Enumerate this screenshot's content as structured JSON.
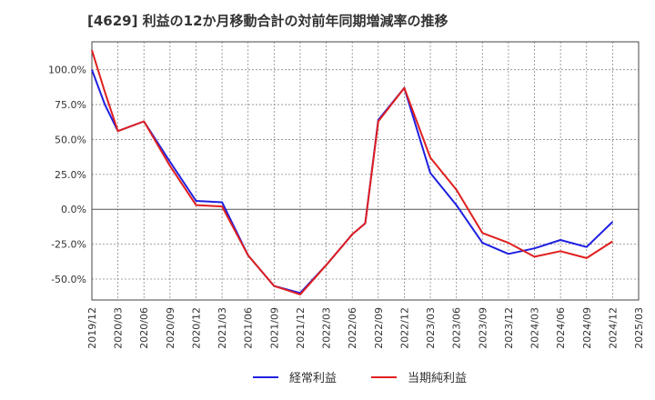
{
  "chart_data": {
    "type": "line",
    "title": "[4629]  利益の12か月移動合計の対前年同期増減率の推移",
    "xlabel": "",
    "ylabel": "",
    "ylim": [
      -65,
      120
    ],
    "yticks": [
      100,
      75,
      50,
      25,
      0,
      -25,
      -50
    ],
    "ytick_labels": [
      "100.0%",
      "75.0%",
      "50.0%",
      "25.0%",
      "0.0%",
      "-25.0%",
      "-50.0%"
    ],
    "x_tick_labels": [
      "2019/12",
      "2020/03",
      "2020/06",
      "2020/09",
      "2020/12",
      "2021/03",
      "2021/06",
      "2021/09",
      "2021/12",
      "2022/03",
      "2022/06",
      "2022/09",
      "2022/12",
      "2023/03",
      "2023/06",
      "2023/09",
      "2023/12",
      "2024/03",
      "2024/06",
      "2024/09",
      "2024/12",
      "2025/03"
    ],
    "grid": true,
    "legend_position": "bottom-center",
    "series": [
      {
        "name": "経常利益",
        "color": "#1f1fe0",
        "points": [
          [
            0,
            100
          ],
          [
            0.5,
            75
          ],
          [
            1,
            56
          ],
          [
            2,
            63
          ],
          [
            3,
            34
          ],
          [
            4,
            6
          ],
          [
            5,
            5
          ],
          [
            6,
            -33
          ],
          [
            7,
            -55
          ],
          [
            8,
            -60
          ],
          [
            9,
            -40
          ],
          [
            10,
            -18
          ],
          [
            10.5,
            -10
          ],
          [
            11,
            64
          ],
          [
            12,
            87
          ],
          [
            13,
            26
          ],
          [
            14,
            3
          ],
          [
            15,
            -24
          ],
          [
            16,
            -32
          ],
          [
            17,
            -28
          ],
          [
            18,
            -22
          ],
          [
            19,
            -27
          ],
          [
            20,
            -9
          ]
        ]
      },
      {
        "name": "当期純利益",
        "color": "#e01f1f",
        "points": [
          [
            0,
            114
          ],
          [
            0.5,
            84
          ],
          [
            1,
            56
          ],
          [
            2,
            63
          ],
          [
            3,
            31
          ],
          [
            4,
            3
          ],
          [
            5,
            2
          ],
          [
            6,
            -33
          ],
          [
            7,
            -55
          ],
          [
            8,
            -61
          ],
          [
            9,
            -40
          ],
          [
            10,
            -18
          ],
          [
            10.5,
            -10
          ],
          [
            11,
            63
          ],
          [
            12,
            87
          ],
          [
            13,
            37
          ],
          [
            14,
            14
          ],
          [
            15,
            -17
          ],
          [
            16,
            -24
          ],
          [
            17,
            -34
          ],
          [
            18,
            -30
          ],
          [
            19,
            -35
          ],
          [
            20,
            -23
          ]
        ]
      }
    ]
  }
}
